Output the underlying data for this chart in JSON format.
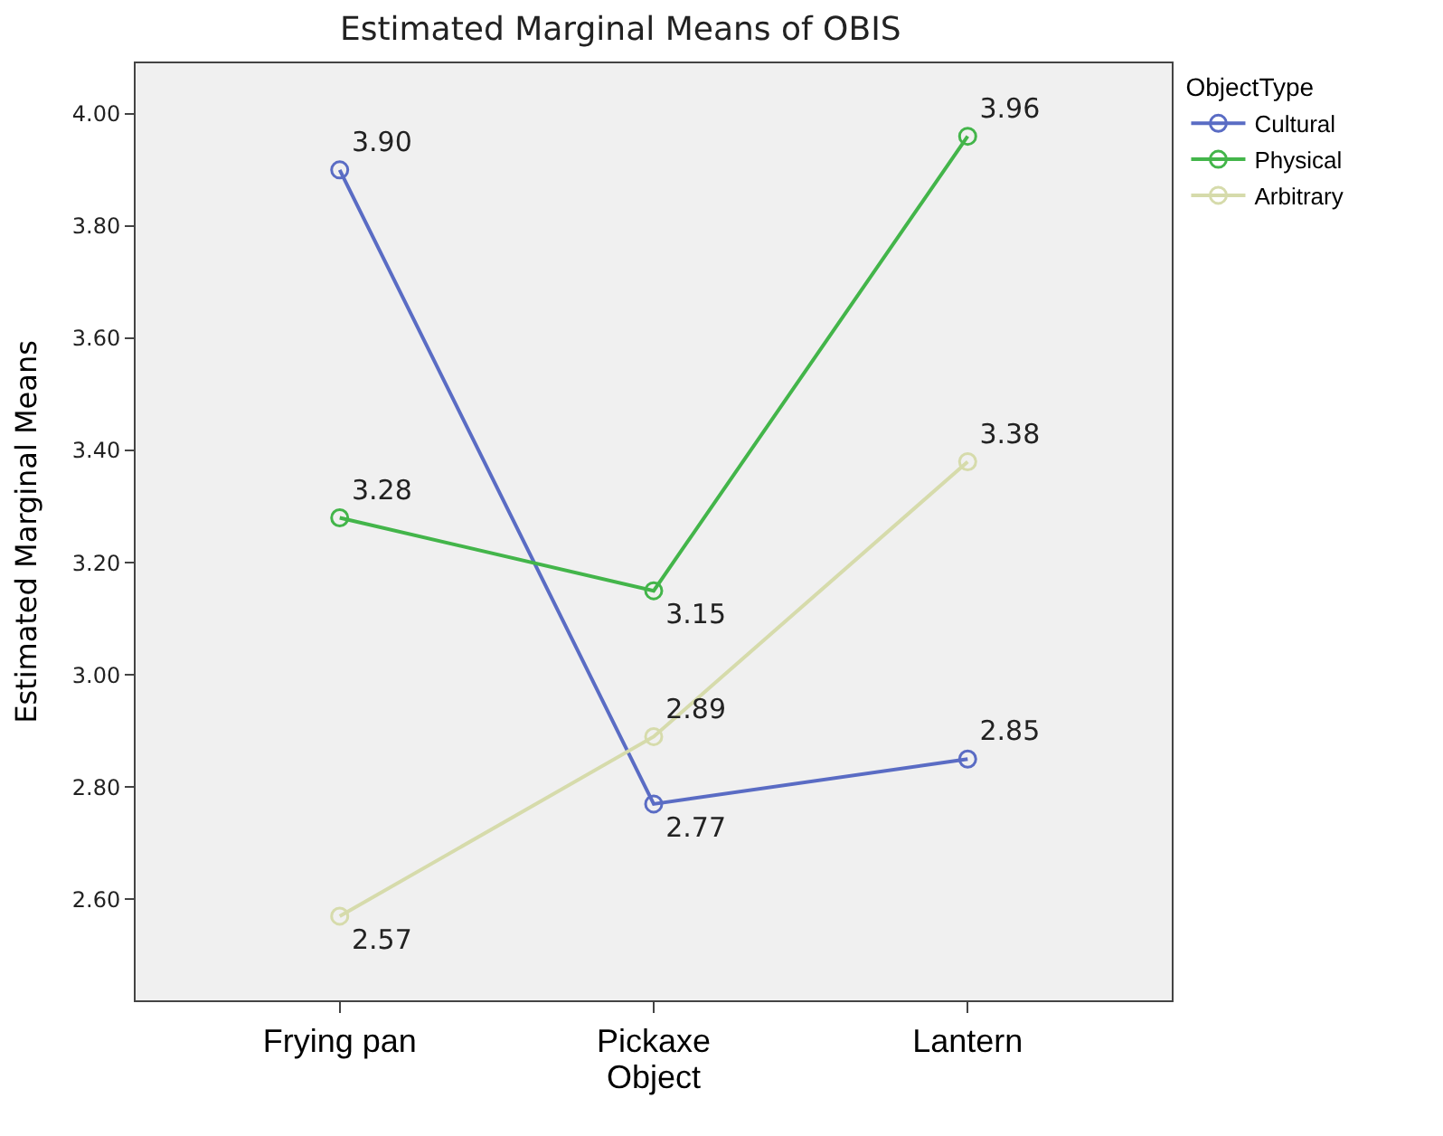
{
  "chart_data": {
    "type": "line",
    "title": "Estimated Marginal Means of OBIS",
    "xlabel": "Object",
    "ylabel": "Estimated Marginal Means",
    "legend_title": "ObjectType",
    "categories": [
      "Frying pan",
      "Pickaxe",
      "Lantern"
    ],
    "series": [
      {
        "name": "Cultural",
        "color": "#5a6cc4",
        "values": [
          3.9,
          2.77,
          2.85
        ],
        "value_labels": [
          "3.90",
          "2.77",
          "2.85"
        ]
      },
      {
        "name": "Physical",
        "color": "#43b54a",
        "values": [
          3.28,
          3.15,
          3.96
        ],
        "value_labels": [
          "3.28",
          "3.15",
          "3.96"
        ]
      },
      {
        "name": "Arbitrary",
        "color": "#d6dbab",
        "values": [
          2.57,
          2.89,
          3.38
        ],
        "value_labels": [
          "2.57",
          "2.89",
          "3.38"
        ]
      }
    ],
    "ylim": [
      2.42,
      4.09
    ],
    "yticks": [
      {
        "value": 2.6,
        "label": "2.60"
      },
      {
        "value": 2.8,
        "label": "2.80"
      },
      {
        "value": 3.0,
        "label": "3.00"
      },
      {
        "value": 3.2,
        "label": "3.20"
      },
      {
        "value": 3.4,
        "label": "3.40"
      },
      {
        "value": 3.6,
        "label": "3.60"
      },
      {
        "value": 3.8,
        "label": "3.80"
      },
      {
        "value": 4.0,
        "label": "4.00"
      }
    ],
    "grid": false,
    "legend": "top right",
    "marker": "circle",
    "line_style": "solid"
  }
}
